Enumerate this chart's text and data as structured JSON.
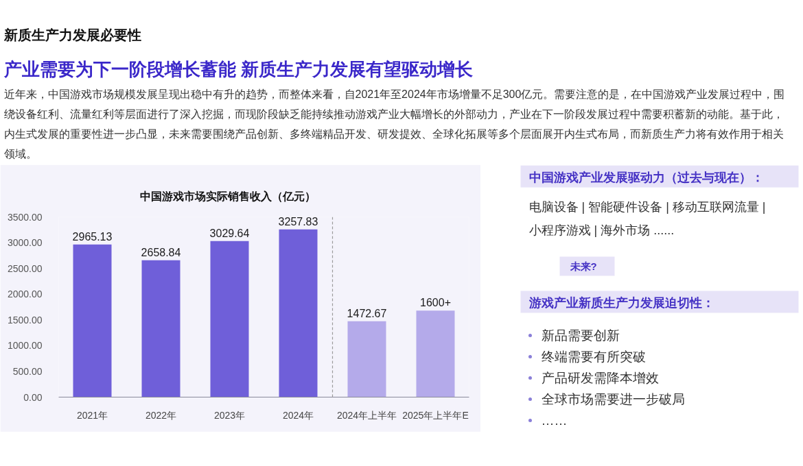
{
  "chart_data": [
    {
      "type": "other",
      "title": "新质生产力发展必要性",
      "subtitle": "产业需要为下一阶段增长蓄能  新质生产力发展有望驱动增长",
      "annotations": [
        "近年来，中国游戏市场规模发展呈现出稳中有升的趋势，而整体来看，自2021年至2024年市场增量不足300亿元。需要注意的是，在中国游戏产业发展过程中，围绕设备红利、流量红利等层面进行了深入挖掘，而现阶段缺乏能持续推动游戏产业大幅增长的外部动力，产业在下一阶段发展过程中需要积蓄新的动能。基于此，内生式发展的重要性进一步凸显，未来需要围绕产品创新、多终端精品开发、研发提效、全球化拓展等多个层面展开内生式布局，而新质生产力将有效作用于相关领域。"
      ]
    },
    {
      "type": "bar",
      "title": "中国游戏市场实际销售收入（亿元）",
      "categories": [
        "2021年",
        "2022年",
        "2023年",
        "2024年",
        "2024年上半年",
        "2025年上半年E"
      ],
      "values": [
        2965.13,
        2658.84,
        3029.64,
        3257.83,
        1472.67,
        1680
      ],
      "colors": [
        "#6f5fd9",
        "#6f5fd9",
        "#6f5fd9",
        "#6f5fd9",
        "#b4aaea",
        "#b4aaea"
      ],
      "value_labels": [
        "2965.13",
        "2658.84",
        "3029.64",
        "3257.83",
        "1472.67",
        "1600+"
      ],
      "ylim": [
        0,
        3500
      ],
      "yticks": [
        {
          "value": 0,
          "label": "0.00"
        },
        {
          "value": 500,
          "label": "500.00"
        },
        {
          "value": 1000,
          "label": "1000.00"
        },
        {
          "value": 1500,
          "label": "1500.00"
        },
        {
          "value": 2000,
          "label": "2000.00"
        },
        {
          "value": 2500,
          "label": "2500.00"
        },
        {
          "value": 3000,
          "label": "3000.00"
        },
        {
          "value": 3500,
          "label": "3500.00"
        }
      ]
    },
    {
      "type": "other",
      "title": "中国游戏产业发展驱动力（过去与现在）：",
      "annotations": [
        "电脑设备 | 智能硬件设备 | 移动互联网流量 | 小程序游戏 | 海外市场 ......",
        "未来?"
      ]
    },
    {
      "type": "other",
      "title": "游戏产业新质生产力发展迫切性：",
      "annotations": [
        "新品需要创新",
        "终端需要有所突破",
        "产品研发需降本增效",
        "全球市场需要进一步破局",
        "……"
      ]
    }
  ]
}
